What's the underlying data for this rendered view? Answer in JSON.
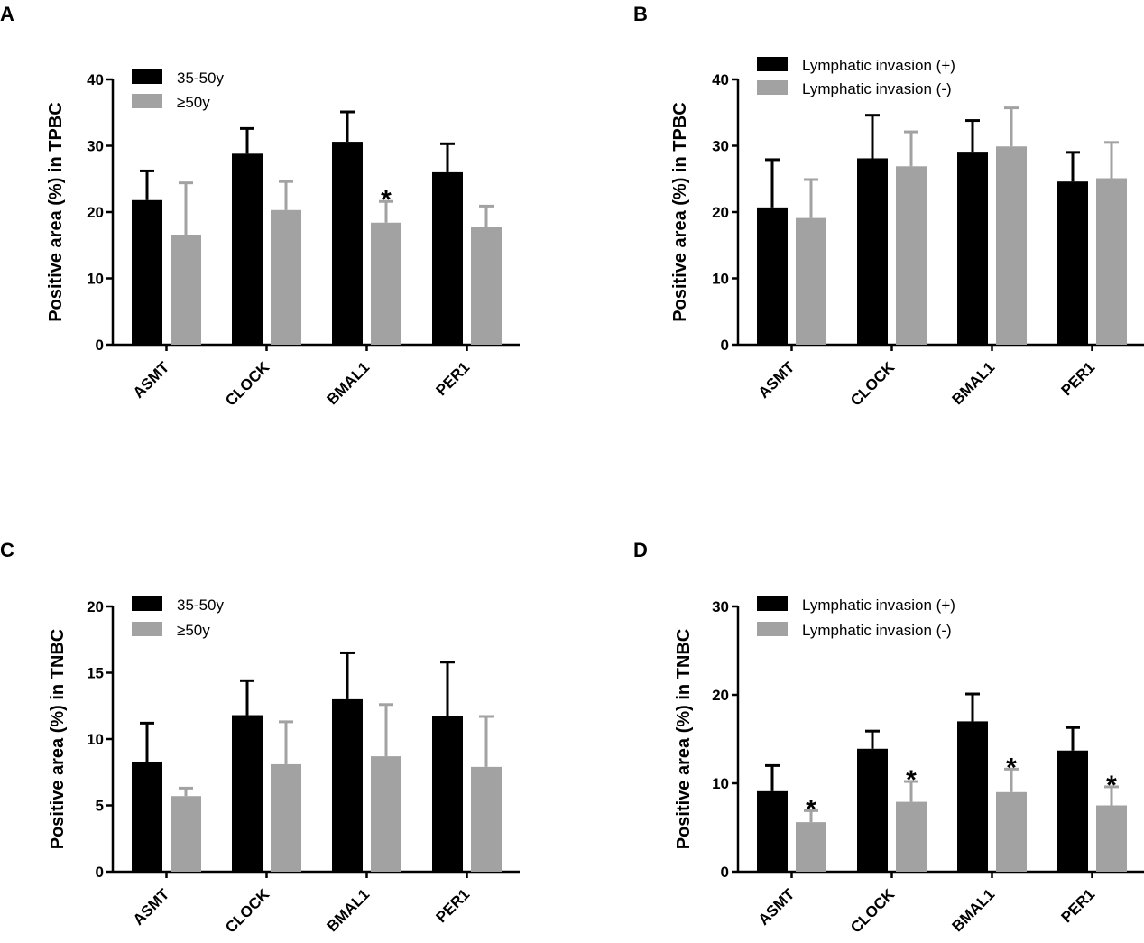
{
  "chart_data": [
    {
      "type": "bar",
      "panel": "A",
      "categories": [
        "ASMT",
        "CLOCK",
        "BMAL1",
        "PER1"
      ],
      "series": [
        {
          "name": "35-50y",
          "color": "#000000",
          "values": [
            21.8,
            28.8,
            30.6,
            26.0
          ],
          "errors": [
            4.4,
            3.8,
            4.5,
            4.3
          ]
        },
        {
          "name": "≥50y",
          "color": "#a2a2a2",
          "values": [
            16.6,
            20.3,
            18.4,
            17.8
          ],
          "errors": [
            7.8,
            4.3,
            3.2,
            3.1
          ]
        }
      ],
      "ylabel": "Positive area (%) in TPBC",
      "ylim": [
        0,
        40
      ],
      "yticks": [
        0,
        10,
        20,
        30,
        40
      ],
      "significance": [
        {
          "category": "BMAL1",
          "series": 1,
          "mark": "*"
        }
      ],
      "legend_position": "top-left"
    },
    {
      "type": "bar",
      "panel": "B",
      "categories": [
        "ASMT",
        "CLOCK",
        "BMAL1",
        "PER1"
      ],
      "series": [
        {
          "name": "Lymphatic invasion (+)",
          "color": "#000000",
          "values": [
            20.7,
            28.1,
            29.1,
            24.6
          ],
          "errors": [
            7.2,
            6.5,
            4.7,
            4.4
          ]
        },
        {
          "name": "Lymphatic invasion (-)",
          "color": "#a2a2a2",
          "values": [
            19.1,
            26.9,
            29.9,
            25.1
          ],
          "errors": [
            5.8,
            5.2,
            5.8,
            5.4
          ]
        }
      ],
      "ylabel": "Positive area (%) in TPBC",
      "ylim": [
        0,
        40
      ],
      "yticks": [
        0,
        10,
        20,
        30,
        40
      ],
      "significance": [],
      "legend_position": "top-left"
    },
    {
      "type": "bar",
      "panel": "C",
      "categories": [
        "ASMT",
        "CLOCK",
        "BMAL1",
        "PER1"
      ],
      "series": [
        {
          "name": "35-50y",
          "color": "#000000",
          "values": [
            8.3,
            11.8,
            13.0,
            11.7
          ],
          "errors": [
            2.9,
            2.6,
            3.5,
            4.1
          ]
        },
        {
          "name": "≥50y",
          "color": "#a2a2a2",
          "values": [
            5.7,
            8.1,
            8.7,
            7.9
          ],
          "errors": [
            0.6,
            3.2,
            3.9,
            3.8
          ]
        }
      ],
      "ylabel": "Positive area (%) in TNBC",
      "ylim": [
        0,
        20
      ],
      "yticks": [
        0,
        5,
        10,
        15,
        20
      ],
      "significance": [],
      "legend_position": "top-left"
    },
    {
      "type": "bar",
      "panel": "D",
      "categories": [
        "ASMT",
        "CLOCK",
        "BMAL1",
        "PER1"
      ],
      "series": [
        {
          "name": "Lymphatic invasion (+)",
          "color": "#000000",
          "values": [
            9.1,
            13.9,
            17.0,
            13.7
          ],
          "errors": [
            2.9,
            2.0,
            3.1,
            2.6
          ]
        },
        {
          "name": "Lymphatic invasion (-)",
          "color": "#a2a2a2",
          "values": [
            5.6,
            7.9,
            9.0,
            7.5
          ],
          "errors": [
            1.3,
            2.3,
            2.6,
            2.1
          ]
        }
      ],
      "ylabel": "Positive area (%) in TNBC",
      "ylim": [
        0,
        30
      ],
      "yticks": [
        0,
        10,
        20,
        30
      ],
      "significance": [
        {
          "category": "ASMT",
          "series": 1,
          "mark": "*"
        },
        {
          "category": "CLOCK",
          "series": 1,
          "mark": "*"
        },
        {
          "category": "BMAL1",
          "series": 1,
          "mark": "*"
        },
        {
          "category": "PER1",
          "series": 1,
          "mark": "*"
        }
      ],
      "legend_position": "top-left"
    }
  ]
}
